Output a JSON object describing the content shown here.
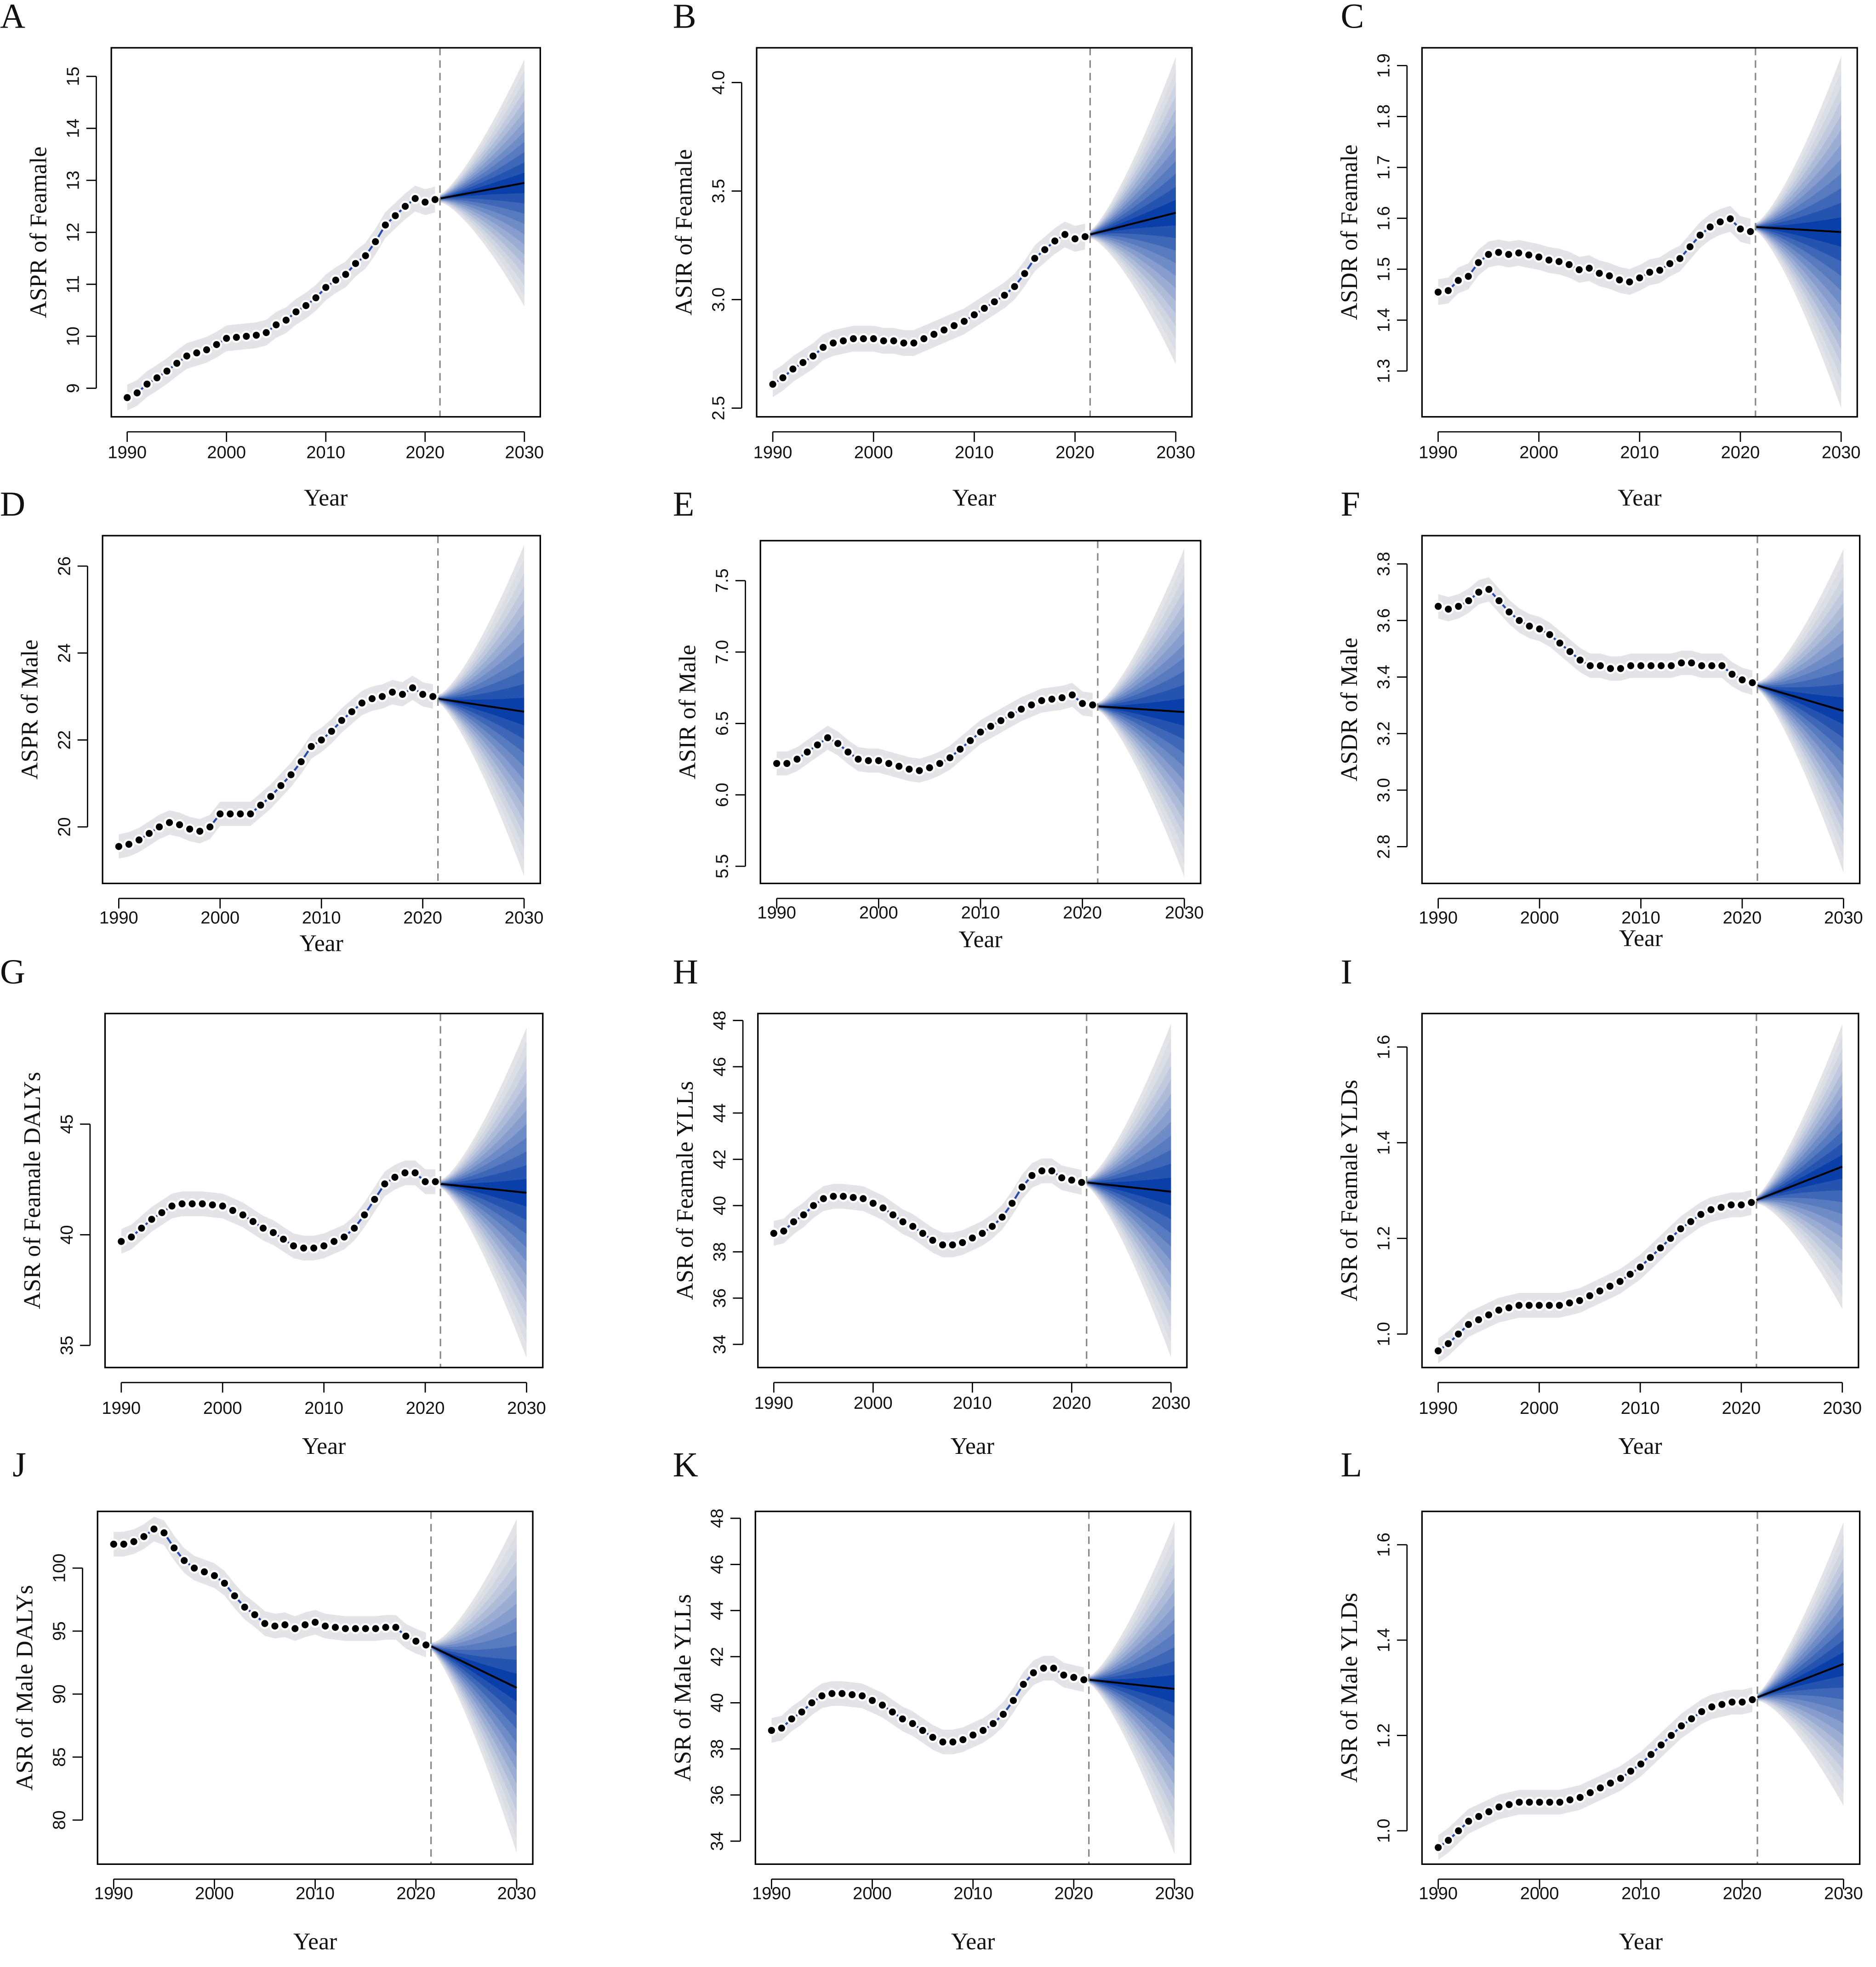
{
  "chart_data": [
    {
      "type": "line",
      "panel": "A",
      "ylabel": "ASPR of Feamale",
      "xlabel": "Year",
      "xticks": [
        1990,
        2000,
        2010,
        2020,
        2030
      ],
      "yticks": [
        9,
        10,
        11,
        12,
        13,
        14,
        15
      ],
      "ylim": [
        8.45,
        15.55
      ],
      "forecast_start": 2021.5,
      "observed": {
        "start_year": 1990,
        "values": [
          8.82,
          8.91,
          9.08,
          9.2,
          9.33,
          9.48,
          9.62,
          9.68,
          9.74,
          9.84,
          9.96,
          9.98,
          10.0,
          10.02,
          10.07,
          10.22,
          10.31,
          10.47,
          10.59,
          10.74,
          10.94,
          11.08,
          11.19,
          11.4,
          11.55,
          11.82,
          12.14,
          12.32,
          12.5,
          12.65,
          12.58,
          12.63
        ]
      },
      "projection": {
        "years": [
          2021.5,
          2030
        ],
        "mean": [
          12.65,
          12.95
        ],
        "upper_2030": 15.25,
        "lower_2030": 10.65
      }
    },
    {
      "type": "line",
      "panel": "B",
      "ylabel": "ASIR of Feamale",
      "xlabel": "Year",
      "xticks": [
        1990,
        2000,
        2010,
        2020,
        2030
      ],
      "yticks": [
        "2.5",
        "3.0",
        "3.5",
        "4.0"
      ],
      "ylim": [
        2.46,
        4.16
      ],
      "forecast_start": 2021.5,
      "observed": {
        "start_year": 1990,
        "values": [
          2.61,
          2.64,
          2.68,
          2.71,
          2.74,
          2.78,
          2.8,
          2.81,
          2.82,
          2.82,
          2.82,
          2.81,
          2.81,
          2.8,
          2.8,
          2.82,
          2.84,
          2.86,
          2.88,
          2.9,
          2.93,
          2.96,
          2.99,
          3.02,
          3.06,
          3.12,
          3.19,
          3.23,
          3.27,
          3.3,
          3.28,
          3.29
        ]
      },
      "projection": {
        "years": [
          2021.5,
          2030
        ],
        "mean": [
          3.3,
          3.4
        ],
        "upper_2030": 4.1,
        "lower_2030": 2.72
      }
    },
    {
      "type": "line",
      "panel": "C",
      "ylabel": "ASDR of Feamale",
      "xlabel": "Year",
      "xticks": [
        1990,
        2000,
        2010,
        2020,
        2030
      ],
      "yticks": [
        "1.3",
        "1.4",
        "1.5",
        "1.6",
        "1.7",
        "1.8",
        "1.9"
      ],
      "ylim": [
        1.21,
        1.935
      ],
      "forecast_start": 2021.5,
      "observed": {
        "start_year": 1990,
        "values": [
          1.455,
          1.458,
          1.478,
          1.486,
          1.513,
          1.529,
          1.533,
          1.529,
          1.532,
          1.528,
          1.524,
          1.518,
          1.515,
          1.509,
          1.499,
          1.502,
          1.492,
          1.487,
          1.479,
          1.475,
          1.483,
          1.494,
          1.498,
          1.511,
          1.521,
          1.544,
          1.567,
          1.583,
          1.593,
          1.599,
          1.579,
          1.574
        ]
      },
      "projection": {
        "years": [
          2021.5,
          2030
        ],
        "mean": [
          1.583,
          1.573
        ],
        "upper_2030": 1.91,
        "lower_2030": 1.235
      }
    },
    {
      "type": "line",
      "panel": "D",
      "ylabel": "ASPR  of  Male",
      "xlabel": "Year",
      "xticks": [
        1990,
        2000,
        2010,
        2020,
        2030
      ],
      "yticks": [
        20,
        22,
        24,
        26
      ],
      "ylim": [
        18.7,
        26.7
      ],
      "forecast_start": 2021.5,
      "observed": {
        "start_year": 1990,
        "values": [
          19.55,
          19.6,
          19.7,
          19.85,
          20.0,
          20.1,
          20.05,
          19.95,
          19.9,
          20.0,
          20.3,
          20.3,
          20.3,
          20.3,
          20.5,
          20.7,
          20.95,
          21.2,
          21.5,
          21.85,
          22.0,
          22.2,
          22.45,
          22.65,
          22.85,
          22.95,
          23.0,
          23.1,
          23.05,
          23.2,
          23.05,
          23.0
        ]
      },
      "projection": {
        "years": [
          2021.5,
          2030
        ],
        "mean": [
          22.95,
          22.65
        ],
        "upper_2030": 26.4,
        "lower_2030": 18.95
      }
    },
    {
      "type": "line",
      "panel": "E",
      "ylabel": "ASIR of Male",
      "xlabel": "Year",
      "xticks": [
        1990,
        2000,
        2010,
        2020,
        2030
      ],
      "yticks": [
        "5.5",
        "6.0",
        "6.5",
        "7.0",
        "7.5"
      ],
      "ylim": [
        5.38,
        7.78
      ],
      "forecast_start": 2021.5,
      "observed": {
        "start_year": 1990,
        "values": [
          6.22,
          6.22,
          6.25,
          6.3,
          6.35,
          6.4,
          6.36,
          6.3,
          6.25,
          6.24,
          6.24,
          6.22,
          6.2,
          6.18,
          6.17,
          6.19,
          6.22,
          6.26,
          6.32,
          6.38,
          6.44,
          6.48,
          6.52,
          6.56,
          6.6,
          6.63,
          6.66,
          6.67,
          6.68,
          6.7,
          6.64,
          6.63
        ]
      },
      "projection": {
        "years": [
          2021.5,
          2030
        ],
        "mean": [
          6.62,
          6.58
        ],
        "upper_2030": 7.7,
        "lower_2030": 5.45
      }
    },
    {
      "type": "line",
      "panel": "F",
      "ylabel": "ASDR of Male",
      "xlabel": "Year",
      "xticks": [
        1990,
        2000,
        2010,
        2020,
        2030
      ],
      "yticks": [
        "2.8",
        "3.0",
        "3.2",
        "3.4",
        "3.6",
        "3.8"
      ],
      "ylim": [
        2.67,
        3.9
      ],
      "forecast_start": 2021.5,
      "observed": {
        "start_year": 1990,
        "values": [
          3.65,
          3.64,
          3.65,
          3.67,
          3.7,
          3.71,
          3.67,
          3.63,
          3.6,
          3.58,
          3.57,
          3.55,
          3.52,
          3.49,
          3.46,
          3.44,
          3.44,
          3.43,
          3.43,
          3.44,
          3.44,
          3.44,
          3.44,
          3.44,
          3.45,
          3.45,
          3.44,
          3.44,
          3.44,
          3.41,
          3.39,
          3.38
        ]
      },
      "projection": {
        "years": [
          2021.5,
          2030
        ],
        "mean": [
          3.37,
          3.28
        ],
        "upper_2030": 3.84,
        "lower_2030": 2.72
      }
    },
    {
      "type": "line",
      "panel": "G",
      "ylabel": "ASR  of  Feamale  DALYs",
      "xlabel": "Year",
      "xticks": [
        1990,
        2000,
        2010,
        2020,
        2030
      ],
      "yticks": [
        35,
        40,
        45
      ],
      "ylim": [
        34.0,
        50.0
      ],
      "forecast_start": 2021.5,
      "observed": {
        "start_year": 1990,
        "values": [
          39.7,
          39.9,
          40.3,
          40.7,
          41.0,
          41.3,
          41.4,
          41.4,
          41.4,
          41.35,
          41.3,
          41.1,
          40.9,
          40.6,
          40.3,
          40.1,
          39.8,
          39.5,
          39.4,
          39.4,
          39.5,
          39.7,
          39.9,
          40.3,
          40.9,
          41.6,
          42.3,
          42.6,
          42.8,
          42.8,
          42.4,
          42.4
        ]
      },
      "projection": {
        "years": [
          2021.5,
          2030
        ],
        "mean": [
          42.3,
          41.9
        ],
        "upper_2030": 49.2,
        "lower_2030": 34.6
      }
    },
    {
      "type": "line",
      "panel": "H",
      "ylabel": "ASR  of  Feamale  YLLs",
      "xlabel": "Year",
      "xticks": [
        1990,
        2000,
        2010,
        2020,
        2030
      ],
      "yticks": [
        34,
        36,
        38,
        40,
        42,
        44,
        46,
        48
      ],
      "ylim": [
        33.0,
        48.3
      ],
      "forecast_start": 2021.5,
      "observed": {
        "start_year": 1990,
        "values": [
          38.8,
          38.9,
          39.3,
          39.6,
          40.0,
          40.3,
          40.4,
          40.4,
          40.35,
          40.3,
          40.1,
          39.9,
          39.6,
          39.3,
          39.1,
          38.8,
          38.5,
          38.3,
          38.3,
          38.4,
          38.6,
          38.8,
          39.1,
          39.5,
          40.1,
          40.8,
          41.3,
          41.5,
          41.5,
          41.2,
          41.1,
          41.0
        ]
      },
      "projection": {
        "years": [
          2021.5,
          2030
        ],
        "mean": [
          41.0,
          40.6
        ],
        "upper_2030": 47.7,
        "lower_2030": 33.6
      }
    },
    {
      "type": "line",
      "panel": "I",
      "ylabel": "ASR  of  Feamale  YLDs",
      "xlabel": "Year",
      "xticks": [
        1990,
        2000,
        2010,
        2020,
        2030
      ],
      "yticks": [
        "1.0",
        "1.2",
        "1.4",
        "1.6"
      ],
      "ylim": [
        0.93,
        1.67
      ],
      "forecast_start": 2021.5,
      "observed": {
        "start_year": 1990,
        "values": [
          0.965,
          0.98,
          1.0,
          1.02,
          1.03,
          1.04,
          1.05,
          1.055,
          1.06,
          1.06,
          1.06,
          1.06,
          1.06,
          1.065,
          1.07,
          1.08,
          1.09,
          1.1,
          1.11,
          1.125,
          1.14,
          1.16,
          1.18,
          1.2,
          1.22,
          1.235,
          1.25,
          1.26,
          1.265,
          1.27,
          1.27,
          1.275
        ]
      },
      "projection": {
        "years": [
          2021.5,
          2030
        ],
        "mean": [
          1.28,
          1.35
        ],
        "upper_2030": 1.64,
        "lower_2030": 1.06
      }
    },
    {
      "type": "line",
      "panel": "J",
      "ylabel": "ASR  of  Male  DALYs",
      "xlabel": "Year",
      "xticks": [
        1990,
        2000,
        2010,
        2020,
        2030
      ],
      "yticks": [
        80,
        85,
        90,
        95,
        100
      ],
      "ylim": [
        76.5,
        104.5
      ],
      "forecast_start": 2021.5,
      "observed": {
        "start_year": 1990,
        "values": [
          101.9,
          101.9,
          102.1,
          102.5,
          103.1,
          102.8,
          101.6,
          100.6,
          100.0,
          99.7,
          99.4,
          98.8,
          97.8,
          96.9,
          96.3,
          95.6,
          95.4,
          95.5,
          95.2,
          95.5,
          95.7,
          95.4,
          95.3,
          95.2,
          95.2,
          95.2,
          95.2,
          95.3,
          95.3,
          94.6,
          94.2,
          93.9
        ]
      },
      "projection": {
        "years": [
          2021.5,
          2030
        ],
        "mean": [
          93.8,
          90.5
        ],
        "upper_2030": 103.6,
        "lower_2030": 77.7
      }
    },
    {
      "type": "line",
      "panel": "K",
      "ylabel": "ASR  of  Male  YLLs",
      "xlabel": "Year",
      "xticks": [
        1990,
        2000,
        2010,
        2020,
        2030
      ],
      "yticks": [
        34,
        36,
        38,
        40,
        42,
        44,
        46,
        48
      ],
      "ylim": [
        33.0,
        48.3
      ],
      "forecast_start": 2021.5,
      "observed": {
        "start_year": 1990,
        "values": [
          38.8,
          38.9,
          39.3,
          39.6,
          40.0,
          40.3,
          40.4,
          40.4,
          40.35,
          40.3,
          40.1,
          39.9,
          39.6,
          39.3,
          39.1,
          38.8,
          38.5,
          38.3,
          38.3,
          38.4,
          38.6,
          38.8,
          39.1,
          39.5,
          40.1,
          40.8,
          41.3,
          41.5,
          41.5,
          41.2,
          41.1,
          41.0
        ]
      },
      "projection": {
        "years": [
          2021.5,
          2030
        ],
        "mean": [
          41.0,
          40.6
        ],
        "upper_2030": 47.7,
        "lower_2030": 33.6
      }
    },
    {
      "type": "line",
      "panel": "L",
      "ylabel": "ASR  of  Male  YLDs",
      "xlabel": "Year",
      "xticks": [
        1990,
        2000,
        2010,
        2020,
        2030
      ],
      "yticks": [
        "1.0",
        "1.2",
        "1.4",
        "1.6"
      ],
      "ylim": [
        0.93,
        1.67
      ],
      "forecast_start": 2021.5,
      "observed": {
        "start_year": 1990,
        "values": [
          0.965,
          0.98,
          1.0,
          1.02,
          1.03,
          1.04,
          1.05,
          1.055,
          1.06,
          1.06,
          1.06,
          1.06,
          1.06,
          1.065,
          1.07,
          1.08,
          1.09,
          1.1,
          1.11,
          1.125,
          1.14,
          1.16,
          1.18,
          1.2,
          1.22,
          1.235,
          1.25,
          1.26,
          1.265,
          1.27,
          1.27,
          1.275
        ]
      },
      "projection": {
        "years": [
          2021.5,
          2030
        ],
        "mean": [
          1.28,
          1.35
        ],
        "upper_2030": 1.64,
        "lower_2030": 1.06
      }
    }
  ],
  "colors": {
    "fan_inner": "#0a3ea8",
    "fan_outer": "#e4e4e8",
    "points": "#000000",
    "forecast_line": "#888888"
  }
}
